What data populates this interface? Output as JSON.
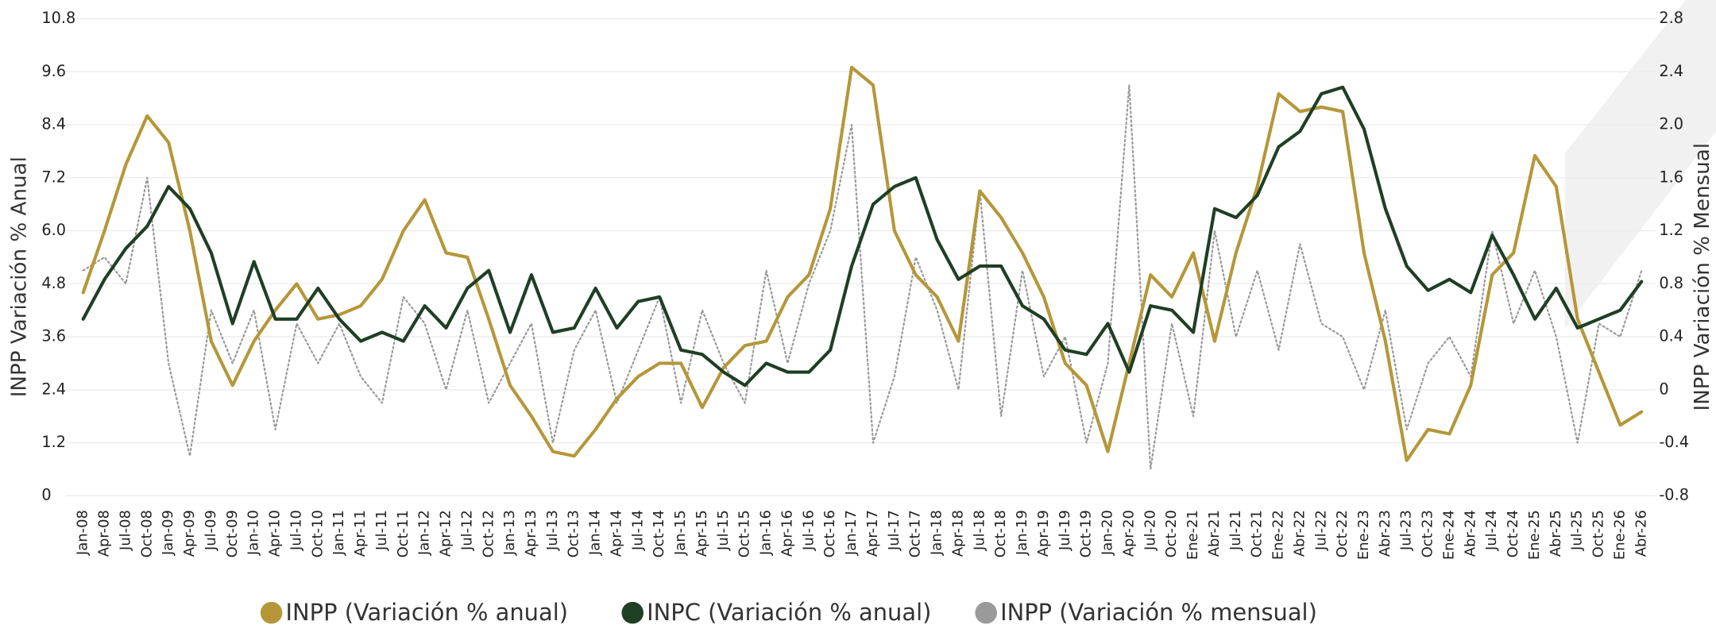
{
  "chart_data": {
    "type": "line",
    "y_label": "INPP Variación % Anual",
    "y2_label": "INPP Variación % Mensual",
    "categories": [
      "Jan-08",
      "Apr-08",
      "Jul-08",
      "Oct-08",
      "Jan-09",
      "Apr-09",
      "Jul-09",
      "Oct-09",
      "Jan-10",
      "Apr-10",
      "Jul-10",
      "Oct-10",
      "Jan-11",
      "Apr-11",
      "Jul-11",
      "Oct-11",
      "Jan-12",
      "Apr-12",
      "Jul-12",
      "Oct-12",
      "Jan-13",
      "Apr-13",
      "Jul-13",
      "Oct-13",
      "Jan-14",
      "Apr-14",
      "Jul-14",
      "Oct-14",
      "Jan-15",
      "Apr-15",
      "Jul-15",
      "Oct-15",
      "Jan-16",
      "Apr-16",
      "Jul-16",
      "Oct-16",
      "Jan-17",
      "Apr-17",
      "Jul-17",
      "Oct-17",
      "Jan-18",
      "Apr-18",
      "Jul-18",
      "Oct-18",
      "Jan-19",
      "Apr-19",
      "Jul-19",
      "Oct-19",
      "Jan-20",
      "Apr-20",
      "Jul-20",
      "Oct-20",
      "Ene-21",
      "Abr-21",
      "Jul-21",
      "Oct-21",
      "Ene-22",
      "Abr-22",
      "Jul-22",
      "Oct-22",
      "Ene-23",
      "Abr-23",
      "Jul-23",
      "Oct-23",
      "Ene-24",
      "Abr-24",
      "Jul-24",
      "Oct-24",
      "Ene-25",
      "Abr-25",
      "Jul-25",
      "Oct-25",
      "Ene-26",
      "Abr-26"
    ],
    "series": [
      {
        "name": "INPP (Variación % anual)",
        "color": "#b5973a",
        "style": "solid",
        "values": [
          4.6,
          6.0,
          7.5,
          8.6,
          8.0,
          6.0,
          3.5,
          2.5,
          3.5,
          4.2,
          4.8,
          4.0,
          4.1,
          4.3,
          4.9,
          6.0,
          6.7,
          5.5,
          5.4,
          4.0,
          2.5,
          1.8,
          1.0,
          0.9,
          1.5,
          2.2,
          2.7,
          3.0,
          3.0,
          2.0,
          2.9,
          3.4,
          3.5,
          4.5,
          5.0,
          6.5,
          9.7,
          9.3,
          6.0,
          5.0,
          4.5,
          3.5,
          6.9,
          6.3,
          5.5,
          4.5,
          3.0,
          2.5,
          1.0,
          3.0,
          5.0,
          4.5,
          5.5,
          3.5,
          5.5,
          7.0,
          9.1,
          8.7,
          8.8,
          8.7,
          5.5,
          3.5,
          0.8,
          1.5,
          1.4,
          2.5,
          5.0,
          5.5,
          7.7,
          7.0,
          4.0,
          2.8,
          1.6,
          1.9
        ]
      },
      {
        "name": "INPC (Variación % anual)",
        "color": "#1f3f25",
        "style": "solid",
        "values": [
          4.0,
          4.9,
          5.6,
          6.1,
          7.0,
          6.5,
          5.5,
          3.9,
          5.3,
          4.0,
          4.0,
          4.7,
          4.0,
          3.5,
          3.7,
          3.5,
          4.3,
          3.8,
          4.7,
          5.1,
          3.7,
          5.0,
          3.7,
          3.8,
          4.7,
          3.8,
          4.4,
          4.5,
          3.3,
          3.2,
          2.8,
          2.5,
          3.0,
          2.8,
          2.8,
          3.3,
          5.2,
          6.6,
          7.0,
          7.2,
          5.8,
          4.9,
          5.2,
          5.2,
          4.3,
          4.0,
          3.3,
          3.2,
          3.9,
          2.8,
          4.3,
          4.2,
          3.7,
          6.5,
          6.3,
          6.8,
          7.9,
          8.25,
          9.1,
          9.25,
          8.3,
          6.5,
          5.2,
          4.65,
          4.9,
          4.6,
          5.9,
          5.0,
          4.0,
          4.7,
          3.8,
          4.0,
          4.2,
          4.85
        ]
      },
      {
        "name": "INPP (Variación % mensual)",
        "color": "#9a9a9a",
        "style": "dotted",
        "axis": "y2",
        "values": [
          0.9,
          1.0,
          0.8,
          1.6,
          0.2,
          -0.5,
          0.6,
          0.2,
          0.6,
          -0.3,
          0.5,
          0.2,
          0.5,
          0.1,
          -0.1,
          0.7,
          0.5,
          0.0,
          0.6,
          -0.1,
          0.2,
          0.5,
          -0.4,
          0.3,
          0.6,
          -0.1,
          0.3,
          0.7,
          -0.1,
          0.6,
          0.2,
          -0.1,
          0.9,
          0.2,
          0.8,
          1.2,
          2.0,
          -0.4,
          0.1,
          1.0,
          0.6,
          0.0,
          1.5,
          -0.2,
          0.9,
          0.1,
          0.4,
          -0.4,
          0.2,
          2.3,
          -0.6,
          0.5,
          -0.2,
          1.2,
          0.4,
          0.9,
          0.3,
          1.1,
          0.5,
          0.4,
          0.0,
          0.6,
          -0.3,
          0.2,
          0.4,
          0.1,
          1.2,
          0.5,
          0.9,
          0.4,
          -0.4,
          0.5,
          0.4,
          0.9
        ]
      }
    ],
    "ylim": [
      0,
      10.8
    ],
    "yticks": [
      0,
      1.2,
      2.4,
      3.6,
      4.8,
      {
        "value": 6,
        "label": "6.0"
      },
      7.2,
      8.4,
      9.6,
      10.8
    ],
    "y2lim": [
      -0.8,
      2.8
    ],
    "y2ticks": [
      -0.8,
      -0.4,
      0,
      0.4,
      0.8,
      1.2,
      1.6,
      {
        "value": 2,
        "label": "2.0"
      },
      2.4,
      2.8
    ],
    "grid": true,
    "legend": "bottom"
  }
}
